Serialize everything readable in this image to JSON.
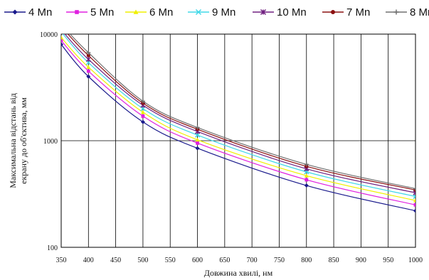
{
  "chart_data": {
    "type": "line",
    "title": "",
    "xlabel": "Довжина хвилі, нм",
    "ylabel_lines": [
      "Максимальна відстань від",
      "екрану до об'єктива, мм"
    ],
    "x_scale": "linear",
    "y_scale": "log",
    "xlim": [
      350,
      1000
    ],
    "ylim": [
      100,
      10000
    ],
    "x_ticks": [
      "350",
      "400",
      "450",
      "500",
      "550",
      "600",
      "650",
      "700",
      "750",
      "800",
      "850",
      "900",
      "950",
      "1000"
    ],
    "y_ticks": [
      "100",
      "1000",
      "10000"
    ],
    "grid": true,
    "legend_position": "top",
    "x": [
      350,
      400,
      500,
      600,
      800,
      1000
    ],
    "series": [
      {
        "name": "4 Mn",
        "color": "#1a1a8c",
        "marker": "diamond",
        "values": [
          8000,
          4000,
          1500,
          850,
          380,
          220
        ]
      },
      {
        "name": "5 Mn",
        "color": "#e020e0",
        "marker": "square",
        "values": [
          8700,
          4500,
          1700,
          950,
          430,
          250
        ]
      },
      {
        "name": "6 Mn",
        "color": "#f0f000",
        "marker": "triangle",
        "values": [
          9300,
          4900,
          1850,
          1020,
          470,
          275
        ]
      },
      {
        "name": "9 Mn",
        "color": "#40d8e8",
        "marker": "x",
        "values": [
          10500,
          5400,
          2000,
          1130,
          510,
          300
        ]
      },
      {
        "name": "10 Mn",
        "color": "#702080",
        "marker": "star",
        "values": [
          11000,
          5800,
          2150,
          1220,
          545,
          325
        ]
      },
      {
        "name": "7 Mn",
        "color": "#8b1010",
        "marker": "circle",
        "values": [
          11800,
          6300,
          2250,
          1280,
          575,
          345
        ]
      },
      {
        "name": "8 Mn",
        "color": "#707070",
        "marker": "plus",
        "values": [
          12300,
          6700,
          2350,
          1330,
          600,
          355
        ]
      }
    ]
  }
}
